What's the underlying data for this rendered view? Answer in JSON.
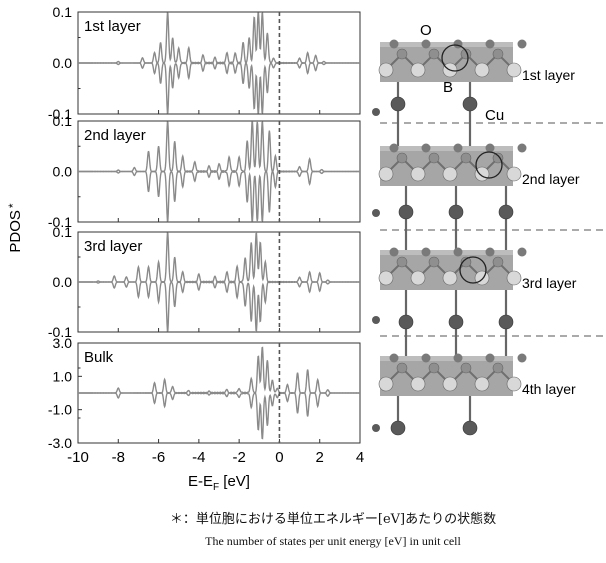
{
  "chart_data": {
    "type": "line",
    "ylabel": "PDOS",
    "ylabel_mark": "*",
    "xlabel_main": "E-E",
    "xlabel_sub": "F",
    "xlabel_unit": " [eV]",
    "xlim": [
      -10,
      4
    ],
    "xticks": [
      "-10",
      "-8",
      "-6",
      "-4",
      "-2",
      "0",
      "2",
      "4"
    ],
    "fermi_level": 0,
    "panels": [
      {
        "name": "1st layer",
        "ylim": [
          -0.1,
          0.1
        ],
        "yticks": [
          "0.1",
          "0.0",
          "-0.1"
        ],
        "peaks": [
          [
            -8.0,
            0.003
          ],
          [
            -6.8,
            0.01
          ],
          [
            -6.2,
            0.02
          ],
          [
            -5.9,
            0.04
          ],
          [
            -5.55,
            0.1
          ],
          [
            -5.3,
            0.05
          ],
          [
            -5.0,
            0.03
          ],
          [
            -4.5,
            0.03
          ],
          [
            -3.8,
            0.015
          ],
          [
            -3.2,
            0.01
          ],
          [
            -2.6,
            0.02
          ],
          [
            -2.2,
            0.02
          ],
          [
            -1.8,
            0.04
          ],
          [
            -1.5,
            0.05
          ],
          [
            -1.25,
            0.09
          ],
          [
            -1.05,
            0.1
          ],
          [
            -0.85,
            0.1
          ],
          [
            -0.6,
            0.06
          ],
          [
            -0.3,
            0.01
          ],
          [
            1.0,
            0.01
          ],
          [
            1.4,
            0.02
          ],
          [
            1.8,
            0.015
          ],
          [
            2.2,
            0.003
          ]
        ]
      },
      {
        "name": "2nd layer",
        "ylim": [
          -0.1,
          0.1
        ],
        "yticks": [
          "0.1",
          "0.0",
          "-0.1"
        ],
        "peaks": [
          [
            -8.0,
            0.003
          ],
          [
            -7.2,
            0.008
          ],
          [
            -6.5,
            0.04
          ],
          [
            -6.0,
            0.05
          ],
          [
            -5.55,
            0.1
          ],
          [
            -5.2,
            0.06
          ],
          [
            -4.8,
            0.03
          ],
          [
            -4.2,
            0.02
          ],
          [
            -3.5,
            0.01
          ],
          [
            -3.0,
            0.015
          ],
          [
            -2.5,
            0.03
          ],
          [
            -2.0,
            0.03
          ],
          [
            -1.6,
            0.06
          ],
          [
            -1.35,
            0.1
          ],
          [
            -1.1,
            0.1
          ],
          [
            -0.85,
            0.1
          ],
          [
            -0.5,
            0.08
          ],
          [
            -0.2,
            0.03
          ],
          [
            1.0,
            0.01
          ],
          [
            1.5,
            0.025
          ],
          [
            2.1,
            0.004
          ]
        ]
      },
      {
        "name": "3rd layer",
        "ylim": [
          -0.1,
          0.1
        ],
        "yticks": [
          "0.1",
          "0.0",
          "-0.1"
        ],
        "peaks": [
          [
            -9.0,
            0.002
          ],
          [
            -8.2,
            0.012
          ],
          [
            -7.6,
            0.01
          ],
          [
            -7.0,
            0.03
          ],
          [
            -6.5,
            0.03
          ],
          [
            -6.0,
            0.04
          ],
          [
            -5.55,
            0.1
          ],
          [
            -5.2,
            0.05
          ],
          [
            -4.8,
            0.02
          ],
          [
            -4.0,
            0.015
          ],
          [
            -3.2,
            0.01
          ],
          [
            -2.6,
            0.02
          ],
          [
            -2.1,
            0.03
          ],
          [
            -1.7,
            0.05
          ],
          [
            -1.4,
            0.08
          ],
          [
            -1.15,
            0.1
          ],
          [
            -0.95,
            0.08
          ],
          [
            -0.7,
            0.04
          ],
          [
            1.0,
            0.01
          ],
          [
            1.5,
            0.02
          ],
          [
            2.0,
            0.018
          ],
          [
            2.4,
            0.004
          ]
        ]
      },
      {
        "name": "Bulk",
        "ylim": [
          -3.0,
          3.0
        ],
        "yticks": [
          "3.0",
          "1.0",
          "-1.0",
          "-3.0"
        ],
        "peaks": [
          [
            -8.0,
            0.3
          ],
          [
            -6.2,
            0.6
          ],
          [
            -5.7,
            0.8
          ],
          [
            -5.3,
            0.4
          ],
          [
            -4.5,
            0.15
          ],
          [
            -3.5,
            0.08
          ],
          [
            -2.6,
            0.2
          ],
          [
            -2.0,
            0.3
          ],
          [
            -1.4,
            0.9
          ],
          [
            -1.05,
            2.2
          ],
          [
            -0.85,
            2.8
          ],
          [
            -0.6,
            2.0
          ],
          [
            -0.35,
            0.8
          ],
          [
            -0.1,
            0.3
          ],
          [
            0.4,
            0.5
          ],
          [
            0.9,
            1.2
          ],
          [
            1.4,
            1.4
          ],
          [
            1.9,
            0.8
          ],
          [
            2.4,
            0.2
          ]
        ]
      }
    ]
  },
  "structure": {
    "atom_labels": [
      "O",
      "B",
      "Cu"
    ],
    "layers": [
      "1st layer",
      "2nd layer",
      "3rd layer",
      "4th layer"
    ]
  },
  "notes": {
    "japanese": "＊：単位胞における単位エネルギー[eV]あたりの状態数",
    "english": "The number of states per unit energy [eV] in unit cell"
  },
  "colors": {
    "curve": "#8a8a8a",
    "axis": "#333333",
    "fermi": "#555555",
    "slab": "#a6a6a6",
    "small_atom": "#c8c8c8",
    "cu_atom": "#5a5a5a"
  }
}
